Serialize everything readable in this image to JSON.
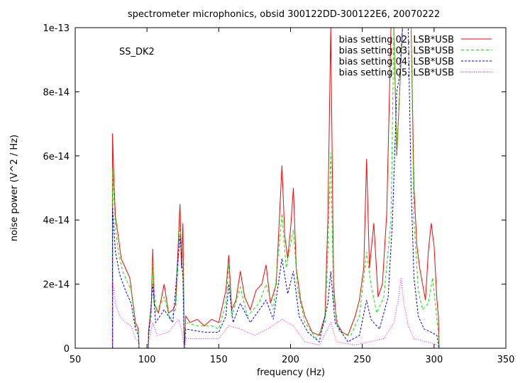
{
  "chart_data": {
    "type": "line",
    "title": "spectrometer microphonics, obsid 300122DD-300122E6, 20070222",
    "annotation": "SS_DK2",
    "xlabel": "frequency (Hz)",
    "ylabel": "noise power (V^2 / Hz)",
    "xlim": [
      50,
      350
    ],
    "ylim": [
      0,
      1e-13
    ],
    "xticks": [
      "50",
      "100",
      "150",
      "200",
      "250",
      "300",
      "350"
    ],
    "yticks": [
      "0",
      "2e-14",
      "4e-14",
      "6e-14",
      "8e-14",
      "1e-13"
    ],
    "legend_position": "top-right",
    "grid": false,
    "series": [
      {
        "name": "bias setting 02, LSB*USB",
        "color": "#ff0000",
        "dash": "",
        "points": [
          [
            76,
            0
          ],
          [
            76,
            6.7e-14
          ],
          [
            77,
            5.2e-14
          ],
          [
            78,
            4.1e-14
          ],
          [
            80,
            3.5e-14
          ],
          [
            82,
            2.8e-14
          ],
          [
            85,
            2.5e-14
          ],
          [
            88,
            2.2e-14
          ],
          [
            90,
            1.5e-14
          ],
          [
            92,
            8e-15
          ],
          [
            94,
            6e-15
          ],
          [
            94.5,
            0
          ],
          [
            101,
            0
          ],
          [
            101,
            5e-15
          ],
          [
            103,
            1.3e-14
          ],
          [
            104,
            3.1e-14
          ],
          [
            105,
            1.4e-14
          ],
          [
            108,
            1.1e-14
          ],
          [
            112,
            2e-14
          ],
          [
            115,
            1.1e-14
          ],
          [
            118,
            1.2e-14
          ],
          [
            120,
            1.4e-14
          ],
          [
            122,
            3.5e-14
          ],
          [
            123,
            4.5e-14
          ],
          [
            124,
            2.5e-14
          ],
          [
            125,
            3.9e-14
          ],
          [
            126,
            0
          ],
          [
            127,
            1e-14
          ],
          [
            130,
            8e-15
          ],
          [
            135,
            9e-15
          ],
          [
            140,
            7e-15
          ],
          [
            145,
            9e-15
          ],
          [
            150,
            8e-15
          ],
          [
            155,
            1.8e-14
          ],
          [
            157,
            2.9e-14
          ],
          [
            159,
            1.2e-14
          ],
          [
            162,
            1.5e-14
          ],
          [
            165,
            2.4e-14
          ],
          [
            168,
            1.6e-14
          ],
          [
            172,
            1.2e-14
          ],
          [
            176,
            1.8e-14
          ],
          [
            180,
            2e-14
          ],
          [
            183,
            2.6e-14
          ],
          [
            186,
            1.4e-14
          ],
          [
            190,
            2e-14
          ],
          [
            194,
            5.7e-14
          ],
          [
            196,
            3.5e-14
          ],
          [
            198,
            2.8e-14
          ],
          [
            200,
            3.7e-14
          ],
          [
            202,
            5e-14
          ],
          [
            204,
            2.5e-14
          ],
          [
            207,
            1.5e-14
          ],
          [
            210,
            1e-14
          ],
          [
            215,
            5e-15
          ],
          [
            220,
            4e-15
          ],
          [
            224,
            1e-14
          ],
          [
            226,
            4e-14
          ],
          [
            228,
            1e-13
          ],
          [
            230,
            2e-14
          ],
          [
            232,
            8e-15
          ],
          [
            236,
            5e-15
          ],
          [
            240,
            4e-15
          ],
          [
            245,
            1e-14
          ],
          [
            248,
            1.5e-14
          ],
          [
            251,
            2.5e-14
          ],
          [
            253,
            5.9e-14
          ],
          [
            255,
            2.5e-14
          ],
          [
            258,
            3.9e-14
          ],
          [
            261,
            1.6e-14
          ],
          [
            264,
            2e-14
          ],
          [
            267,
            4.2e-14
          ],
          [
            270,
            1e-13
          ],
          [
            272,
            1e-13
          ],
          [
            274,
            6e-14
          ],
          [
            276,
            8e-14
          ],
          [
            278,
            1e-13
          ],
          [
            280,
            1e-13
          ],
          [
            282,
            1e-13
          ],
          [
            284,
            1e-13
          ],
          [
            286,
            5e-14
          ],
          [
            288,
            3.2e-14
          ],
          [
            290,
            2.5e-14
          ],
          [
            292,
            2e-14
          ],
          [
            294,
            1.5e-14
          ],
          [
            296,
            3e-14
          ],
          [
            298,
            3.9e-14
          ],
          [
            300,
            3.2e-14
          ],
          [
            302,
            1.5e-14
          ],
          [
            303,
            1e-14
          ],
          [
            303.5,
            0
          ]
        ]
      },
      {
        "name": "bias setting 03, LSB*USB",
        "color": "#00ee00",
        "dash": "4,3",
        "points": [
          [
            76,
            0
          ],
          [
            76,
            5.6e-14
          ],
          [
            78,
            3.8e-14
          ],
          [
            80,
            3e-14
          ],
          [
            83,
            2.4e-14
          ],
          [
            86,
            2.1e-14
          ],
          [
            89,
            1.8e-14
          ],
          [
            92,
            7e-15
          ],
          [
            94,
            5e-15
          ],
          [
            94.5,
            0
          ],
          [
            101,
            0
          ],
          [
            101,
            4e-15
          ],
          [
            103,
            1e-14
          ],
          [
            104,
            2.7e-14
          ],
          [
            106,
            1.1e-14
          ],
          [
            112,
            1.6e-14
          ],
          [
            116,
            9e-15
          ],
          [
            120,
            1.2e-14
          ],
          [
            123,
            3.8e-14
          ],
          [
            125,
            2.8e-14
          ],
          [
            126,
            0
          ],
          [
            127,
            8e-15
          ],
          [
            135,
            7e-15
          ],
          [
            145,
            7e-15
          ],
          [
            150,
            6e-15
          ],
          [
            155,
            1.4e-14
          ],
          [
            157,
            2.6e-14
          ],
          [
            159,
            1e-14
          ],
          [
            165,
            1.9e-14
          ],
          [
            170,
            1e-14
          ],
          [
            178,
            1.4e-14
          ],
          [
            183,
            2e-14
          ],
          [
            188,
            1.2e-14
          ],
          [
            194,
            4.2e-14
          ],
          [
            197,
            2.5e-14
          ],
          [
            202,
            3.7e-14
          ],
          [
            205,
            1.8e-14
          ],
          [
            210,
            8e-15
          ],
          [
            218,
            3e-15
          ],
          [
            224,
            8e-15
          ],
          [
            226,
            3e-14
          ],
          [
            228,
            6.1e-14
          ],
          [
            230,
            1.5e-14
          ],
          [
            234,
            5e-15
          ],
          [
            242,
            4e-15
          ],
          [
            248,
            1e-14
          ],
          [
            253,
            3e-14
          ],
          [
            256,
            2e-14
          ],
          [
            260,
            1.1e-14
          ],
          [
            265,
            1.6e-14
          ],
          [
            270,
            4e-14
          ],
          [
            272,
            1e-13
          ],
          [
            274,
            6e-14
          ],
          [
            276,
            8e-14
          ],
          [
            278,
            1e-13
          ],
          [
            282,
            1e-13
          ],
          [
            284,
            1e-13
          ],
          [
            286,
            4e-14
          ],
          [
            289,
            1.8e-14
          ],
          [
            292,
            1.2e-14
          ],
          [
            296,
            1.4e-14
          ],
          [
            299,
            2.2e-14
          ],
          [
            302,
            9e-15
          ],
          [
            303,
            5e-15
          ],
          [
            303.5,
            0
          ]
        ]
      },
      {
        "name": "bias setting 04, LSB*USB",
        "color": "#0000ff",
        "dash": "3,2",
        "points": [
          [
            76,
            0
          ],
          [
            76,
            4.4e-14
          ],
          [
            78,
            3e-14
          ],
          [
            81,
            2.3e-14
          ],
          [
            85,
            1.8e-14
          ],
          [
            89,
            1.4e-14
          ],
          [
            92,
            6e-15
          ],
          [
            94,
            4e-15
          ],
          [
            94.5,
            0
          ],
          [
            101,
            0
          ],
          [
            101,
            3e-15
          ],
          [
            104,
            2e-14
          ],
          [
            106,
            8e-15
          ],
          [
            112,
            1.2e-14
          ],
          [
            118,
            8e-15
          ],
          [
            123,
            3.5e-14
          ],
          [
            125,
            2.2e-14
          ],
          [
            126,
            0
          ],
          [
            127,
            6e-15
          ],
          [
            140,
            5e-15
          ],
          [
            150,
            5e-15
          ],
          [
            155,
            1e-14
          ],
          [
            157,
            2e-14
          ],
          [
            160,
            8e-15
          ],
          [
            165,
            1.4e-14
          ],
          [
            172,
            8e-15
          ],
          [
            183,
            1.5e-14
          ],
          [
            188,
            9e-15
          ],
          [
            194,
            2.8e-14
          ],
          [
            198,
            1.7e-14
          ],
          [
            202,
            2.4e-14
          ],
          [
            206,
            1e-14
          ],
          [
            212,
            5e-15
          ],
          [
            220,
            2e-15
          ],
          [
            226,
            1.4e-14
          ],
          [
            228,
            2.4e-14
          ],
          [
            231,
            8e-15
          ],
          [
            240,
            2e-15
          ],
          [
            248,
            4e-15
          ],
          [
            253,
            1.5e-14
          ],
          [
            256,
            9e-15
          ],
          [
            262,
            6e-15
          ],
          [
            268,
            1.6e-14
          ],
          [
            271,
            4e-14
          ],
          [
            274,
            8e-14
          ],
          [
            276,
            8.5e-14
          ],
          [
            278,
            1e-13
          ],
          [
            282,
            1e-13
          ],
          [
            284,
            5e-14
          ],
          [
            286,
            2.2e-14
          ],
          [
            289,
            1e-14
          ],
          [
            293,
            6e-15
          ],
          [
            298,
            5e-15
          ],
          [
            302,
            4e-15
          ],
          [
            303.5,
            0
          ]
        ]
      },
      {
        "name": "bias setting 05, LSB*USB",
        "color": "#ff00ff",
        "dash": "1,2",
        "points": [
          [
            76,
            0
          ],
          [
            76,
            2.1e-14
          ],
          [
            78,
            1.4e-14
          ],
          [
            81,
            1e-14
          ],
          [
            85,
            8e-15
          ],
          [
            89,
            7e-15
          ],
          [
            92,
            3e-15
          ],
          [
            94,
            2e-15
          ],
          [
            94.5,
            0
          ],
          [
            101,
            0
          ],
          [
            101,
            2e-15
          ],
          [
            104,
            8e-15
          ],
          [
            107,
            4e-15
          ],
          [
            115,
            5e-15
          ],
          [
            122,
            9e-15
          ],
          [
            124,
            6e-15
          ],
          [
            126,
            0
          ],
          [
            127,
            3e-15
          ],
          [
            140,
            3e-15
          ],
          [
            150,
            3e-15
          ],
          [
            157,
            7e-15
          ],
          [
            165,
            6e-15
          ],
          [
            175,
            4e-15
          ],
          [
            184,
            6e-15
          ],
          [
            194,
            9e-15
          ],
          [
            202,
            7e-15
          ],
          [
            210,
            2e-15
          ],
          [
            220,
            1e-15
          ],
          [
            228,
            8e-15
          ],
          [
            232,
            2e-15
          ],
          [
            245,
            1e-15
          ],
          [
            255,
            2e-15
          ],
          [
            265,
            3e-15
          ],
          [
            272,
            8e-15
          ],
          [
            275,
            1.5e-14
          ],
          [
            277,
            2.2e-14
          ],
          [
            279,
            1.4e-14
          ],
          [
            282,
            7e-15
          ],
          [
            286,
            3e-15
          ],
          [
            295,
            2e-15
          ],
          [
            302,
            1e-15
          ],
          [
            303.5,
            0
          ]
        ]
      }
    ]
  }
}
